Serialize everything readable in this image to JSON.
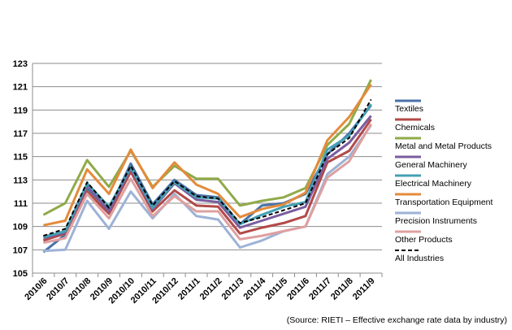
{
  "chart_data": {
    "type": "line",
    "categories": [
      "2010/6",
      "2010/7",
      "2010/8",
      "2010/9",
      "2010/10",
      "2010/11",
      "2010/12",
      "2011/1",
      "2011/2",
      "2011/3",
      "2011/4",
      "2011/5",
      "2011/6",
      "2011/7",
      "2011/8",
      "2011/9"
    ],
    "ylim": [
      105,
      123
    ],
    "yticks": [
      105,
      107,
      109,
      111,
      113,
      115,
      117,
      119,
      121,
      123
    ],
    "grid": "horizontal",
    "legend_position": "right",
    "series": [
      {
        "name": "Textiles",
        "color": "#4a72a8",
        "dashed": false,
        "values": [
          106.8,
          108.3,
          112.3,
          110.4,
          114.4,
          110.9,
          113.0,
          111.7,
          111.5,
          109.2,
          110.8,
          111.0,
          111.8,
          115.2,
          117.0,
          119.4
        ]
      },
      {
        "name": "Chemicals",
        "color": "#b24a48",
        "dashed": false,
        "values": [
          107.8,
          108.4,
          112.0,
          110.1,
          113.7,
          110.3,
          112.1,
          110.8,
          110.7,
          108.4,
          108.9,
          109.3,
          109.9,
          114.5,
          115.5,
          118.2
        ]
      },
      {
        "name": "Metal and Metal Products",
        "color": "#8faa48",
        "dashed": false,
        "values": [
          110.0,
          111.0,
          114.7,
          112.4,
          115.5,
          112.4,
          114.2,
          113.1,
          113.1,
          110.8,
          111.2,
          111.5,
          112.3,
          116.0,
          117.8,
          121.6
        ]
      },
      {
        "name": "General Machinery",
        "color": "#7b5d9e",
        "dashed": false,
        "values": [
          108.0,
          108.5,
          112.5,
          110.3,
          114.0,
          110.5,
          112.7,
          111.3,
          111.1,
          108.9,
          109.5,
          110.1,
          110.7,
          114.8,
          116.2,
          118.5
        ]
      },
      {
        "name": "Electrical Machinery",
        "color": "#44a0b4",
        "dashed": false,
        "values": [
          108.1,
          108.6,
          112.7,
          110.7,
          114.1,
          110.6,
          112.8,
          111.5,
          111.4,
          109.2,
          110.0,
          110.7,
          111.1,
          115.6,
          116.8,
          119.5
        ]
      },
      {
        "name": "Transportation Equipment",
        "color": "#e38b3b",
        "dashed": false,
        "values": [
          109.1,
          109.5,
          113.9,
          111.8,
          115.6,
          112.3,
          114.5,
          112.6,
          111.8,
          109.8,
          110.5,
          110.9,
          111.9,
          116.4,
          118.4,
          121.2
        ]
      },
      {
        "name": "Precision Instruments",
        "color": "#9db2d6",
        "dashed": false,
        "values": [
          106.9,
          107.0,
          111.2,
          108.8,
          112.0,
          109.7,
          111.8,
          109.9,
          109.6,
          107.2,
          107.8,
          108.6,
          109.0,
          113.5,
          115.0,
          117.7
        ]
      },
      {
        "name": "Other Products",
        "color": "#dea0a0",
        "dashed": false,
        "values": [
          107.6,
          108.0,
          111.8,
          109.7,
          113.1,
          109.9,
          111.6,
          110.3,
          110.3,
          107.9,
          108.2,
          108.6,
          109.0,
          113.2,
          114.6,
          117.8
        ]
      },
      {
        "name": "All Industries",
        "color": "#000000",
        "dashed": true,
        "values": [
          108.2,
          108.8,
          112.8,
          110.6,
          114.2,
          110.8,
          112.9,
          111.6,
          111.4,
          109.3,
          109.8,
          110.4,
          111.0,
          115.2,
          116.6,
          119.9
        ]
      }
    ]
  },
  "source_note": "(Source: RIETI – Effective exchange rate data by industry)"
}
